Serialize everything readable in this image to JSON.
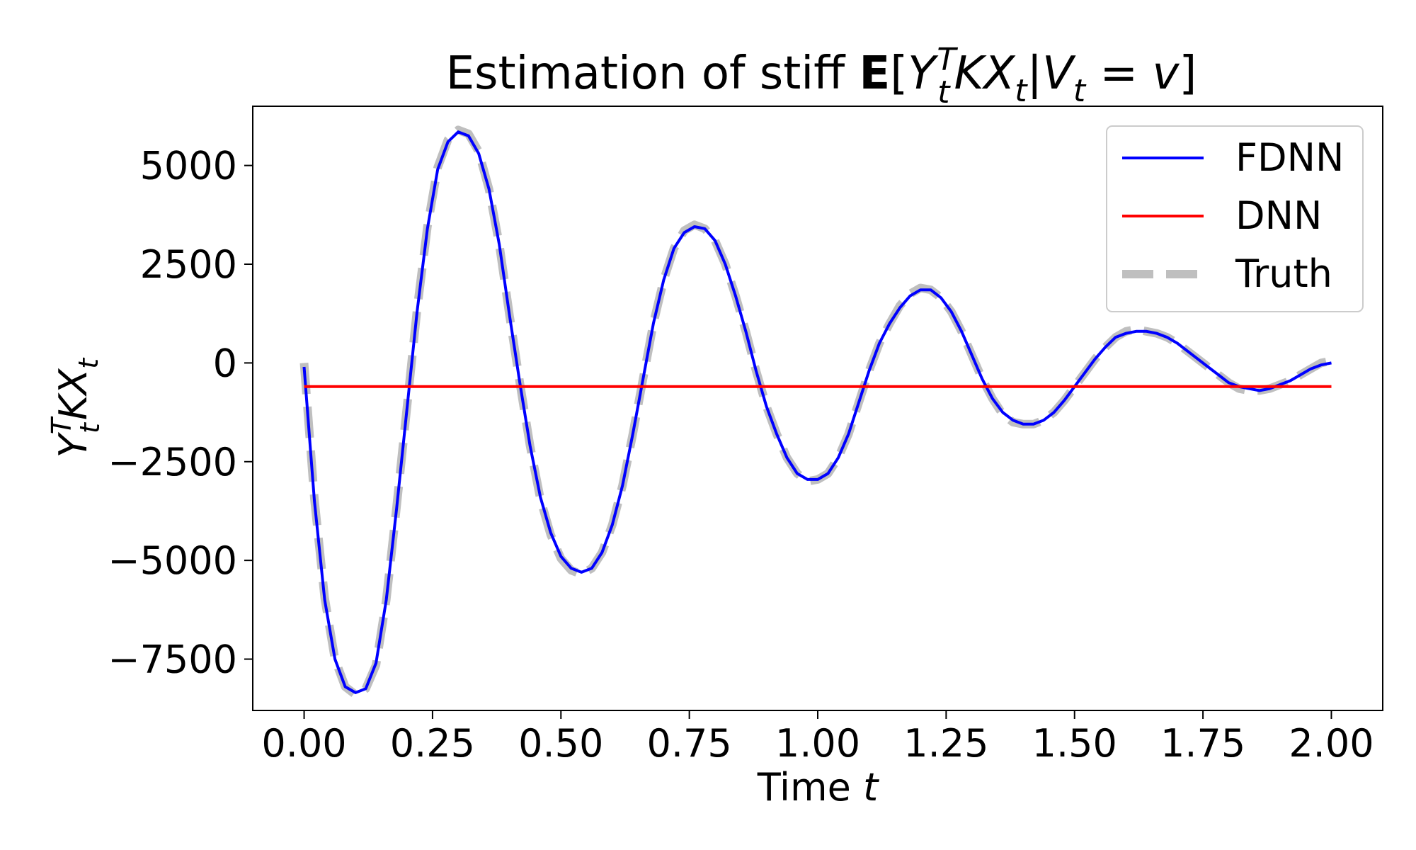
{
  "chart_data": {
    "type": "line",
    "title": {
      "prefix": "Estimation of stiff ",
      "operator": "E",
      "bracket_open": "[",
      "y": "Y",
      "y_sub": "t",
      "y_sup": "T",
      "k": "K",
      "x": "X",
      "x_sub": "t",
      "bar": "|",
      "v_var": "V",
      "v_sub": "t",
      "eq": " = ",
      "v_val": "v",
      "bracket_close": "]"
    },
    "xlabel": {
      "text": "Time ",
      "var": "t"
    },
    "ylabel": {
      "y": "Y",
      "y_sub": "t",
      "y_sup": "T",
      "k": "K",
      "x": "X",
      "x_sub": "t"
    },
    "xlim": [
      -0.1,
      2.1
    ],
    "ylim": [
      -8800,
      6500
    ],
    "x_ticks": [
      0.0,
      0.25,
      0.5,
      0.75,
      1.0,
      1.25,
      1.5,
      1.75,
      2.0
    ],
    "x_tick_labels": [
      "0.00",
      "0.25",
      "0.50",
      "0.75",
      "1.00",
      "1.25",
      "1.50",
      "1.75",
      "2.00"
    ],
    "y_ticks": [
      -7500,
      -5000,
      -2500,
      0,
      2500,
      5000
    ],
    "y_tick_labels": [
      "−7500",
      "−5000",
      "−2500",
      "0",
      "2500",
      "5000"
    ],
    "grid": false,
    "legend_position": "top-right",
    "series": [
      {
        "name": "FDNN",
        "color": "#0000ff",
        "style": "solid",
        "x": [
          0.0,
          0.02,
          0.04,
          0.06,
          0.08,
          0.1,
          0.12,
          0.14,
          0.16,
          0.18,
          0.2,
          0.22,
          0.24,
          0.26,
          0.28,
          0.3,
          0.32,
          0.34,
          0.36,
          0.38,
          0.4,
          0.42,
          0.44,
          0.46,
          0.48,
          0.5,
          0.52,
          0.54,
          0.56,
          0.58,
          0.6,
          0.62,
          0.64,
          0.66,
          0.68,
          0.7,
          0.72,
          0.74,
          0.76,
          0.78,
          0.8,
          0.82,
          0.84,
          0.86,
          0.88,
          0.9,
          0.92,
          0.94,
          0.96,
          0.98,
          1.0,
          1.02,
          1.04,
          1.06,
          1.08,
          1.1,
          1.12,
          1.14,
          1.16,
          1.18,
          1.2,
          1.22,
          1.24,
          1.26,
          1.28,
          1.3,
          1.32,
          1.34,
          1.36,
          1.38,
          1.4,
          1.42,
          1.44,
          1.46,
          1.48,
          1.5,
          1.52,
          1.54,
          1.56,
          1.58,
          1.6,
          1.62,
          1.64,
          1.66,
          1.68,
          1.7,
          1.72,
          1.74,
          1.76,
          1.78,
          1.8,
          1.82,
          1.84,
          1.86,
          1.88,
          1.9,
          1.92,
          1.94,
          1.96,
          1.98,
          2.0
        ],
        "y": [
          -100,
          -3500,
          -6000,
          -7500,
          -8200,
          -8350,
          -8250,
          -7600,
          -6000,
          -3700,
          -1200,
          1300,
          3400,
          4900,
          5600,
          5850,
          5750,
          5300,
          4400,
          3000,
          1200,
          -500,
          -2100,
          -3400,
          -4300,
          -4900,
          -5200,
          -5300,
          -5200,
          -4800,
          -4100,
          -3100,
          -1800,
          -400,
          1000,
          2100,
          2900,
          3300,
          3450,
          3400,
          3100,
          2500,
          1700,
          800,
          -200,
          -1100,
          -1800,
          -2400,
          -2800,
          -2950,
          -2950,
          -2800,
          -2400,
          -1800,
          -1000,
          -200,
          500,
          1000,
          1400,
          1700,
          1850,
          1850,
          1650,
          1300,
          800,
          200,
          -400,
          -900,
          -1250,
          -1450,
          -1550,
          -1550,
          -1450,
          -1250,
          -950,
          -600,
          -250,
          100,
          400,
          650,
          750,
          800,
          800,
          750,
          650,
          500,
          300,
          100,
          -100,
          -300,
          -500,
          -600,
          -650,
          -700,
          -650,
          -550,
          -450,
          -300,
          -150,
          -50,
          0
        ]
      },
      {
        "name": "DNN",
        "color": "#ff0000",
        "style": "solid",
        "x": [
          0.0,
          2.0
        ],
        "y": [
          -600,
          -600
        ]
      },
      {
        "name": "Truth",
        "color": "#bfbfbf",
        "style": "dashed",
        "x": [
          0.0,
          0.02,
          0.04,
          0.06,
          0.08,
          0.1,
          0.12,
          0.14,
          0.16,
          0.18,
          0.2,
          0.22,
          0.24,
          0.26,
          0.28,
          0.3,
          0.32,
          0.34,
          0.36,
          0.38,
          0.4,
          0.42,
          0.44,
          0.46,
          0.48,
          0.5,
          0.52,
          0.54,
          0.56,
          0.58,
          0.6,
          0.62,
          0.64,
          0.66,
          0.68,
          0.7,
          0.72,
          0.74,
          0.76,
          0.78,
          0.8,
          0.82,
          0.84,
          0.86,
          0.88,
          0.9,
          0.92,
          0.94,
          0.96,
          0.98,
          1.0,
          1.02,
          1.04,
          1.06,
          1.08,
          1.1,
          1.12,
          1.14,
          1.16,
          1.18,
          1.2,
          1.22,
          1.24,
          1.26,
          1.28,
          1.3,
          1.32,
          1.34,
          1.36,
          1.38,
          1.4,
          1.42,
          1.44,
          1.46,
          1.48,
          1.5,
          1.52,
          1.54,
          1.56,
          1.58,
          1.6,
          1.62,
          1.64,
          1.66,
          1.68,
          1.7,
          1.72,
          1.74,
          1.76,
          1.78,
          1.8,
          1.82,
          1.84,
          1.86,
          1.88,
          1.9,
          1.92,
          1.94,
          1.96,
          1.98,
          2.0
        ],
        "y": [
          0,
          -3450,
          -5950,
          -7500,
          -8200,
          -8400,
          -8250,
          -7650,
          -6000,
          -3650,
          -1150,
          1350,
          3450,
          4950,
          5650,
          5900,
          5800,
          5350,
          4400,
          3000,
          1200,
          -500,
          -2100,
          -3450,
          -4350,
          -4950,
          -5250,
          -5350,
          -5200,
          -4800,
          -4100,
          -3100,
          -1800,
          -400,
          1000,
          2100,
          2900,
          3350,
          3500,
          3400,
          3100,
          2500,
          1700,
          800,
          -200,
          -1100,
          -1800,
          -2400,
          -2800,
          -3000,
          -2950,
          -2800,
          -2400,
          -1800,
          -1000,
          -200,
          500,
          1000,
          1450,
          1750,
          1900,
          1850,
          1650,
          1300,
          800,
          200,
          -400,
          -900,
          -1300,
          -1500,
          -1550,
          -1550,
          -1450,
          -1250,
          -950,
          -600,
          -250,
          100,
          400,
          650,
          800,
          850,
          800,
          750,
          650,
          500,
          300,
          100,
          -100,
          -300,
          -500,
          -650,
          -700,
          -700,
          -650,
          -550,
          -450,
          -300,
          -150,
          0,
          50
        ]
      }
    ]
  }
}
